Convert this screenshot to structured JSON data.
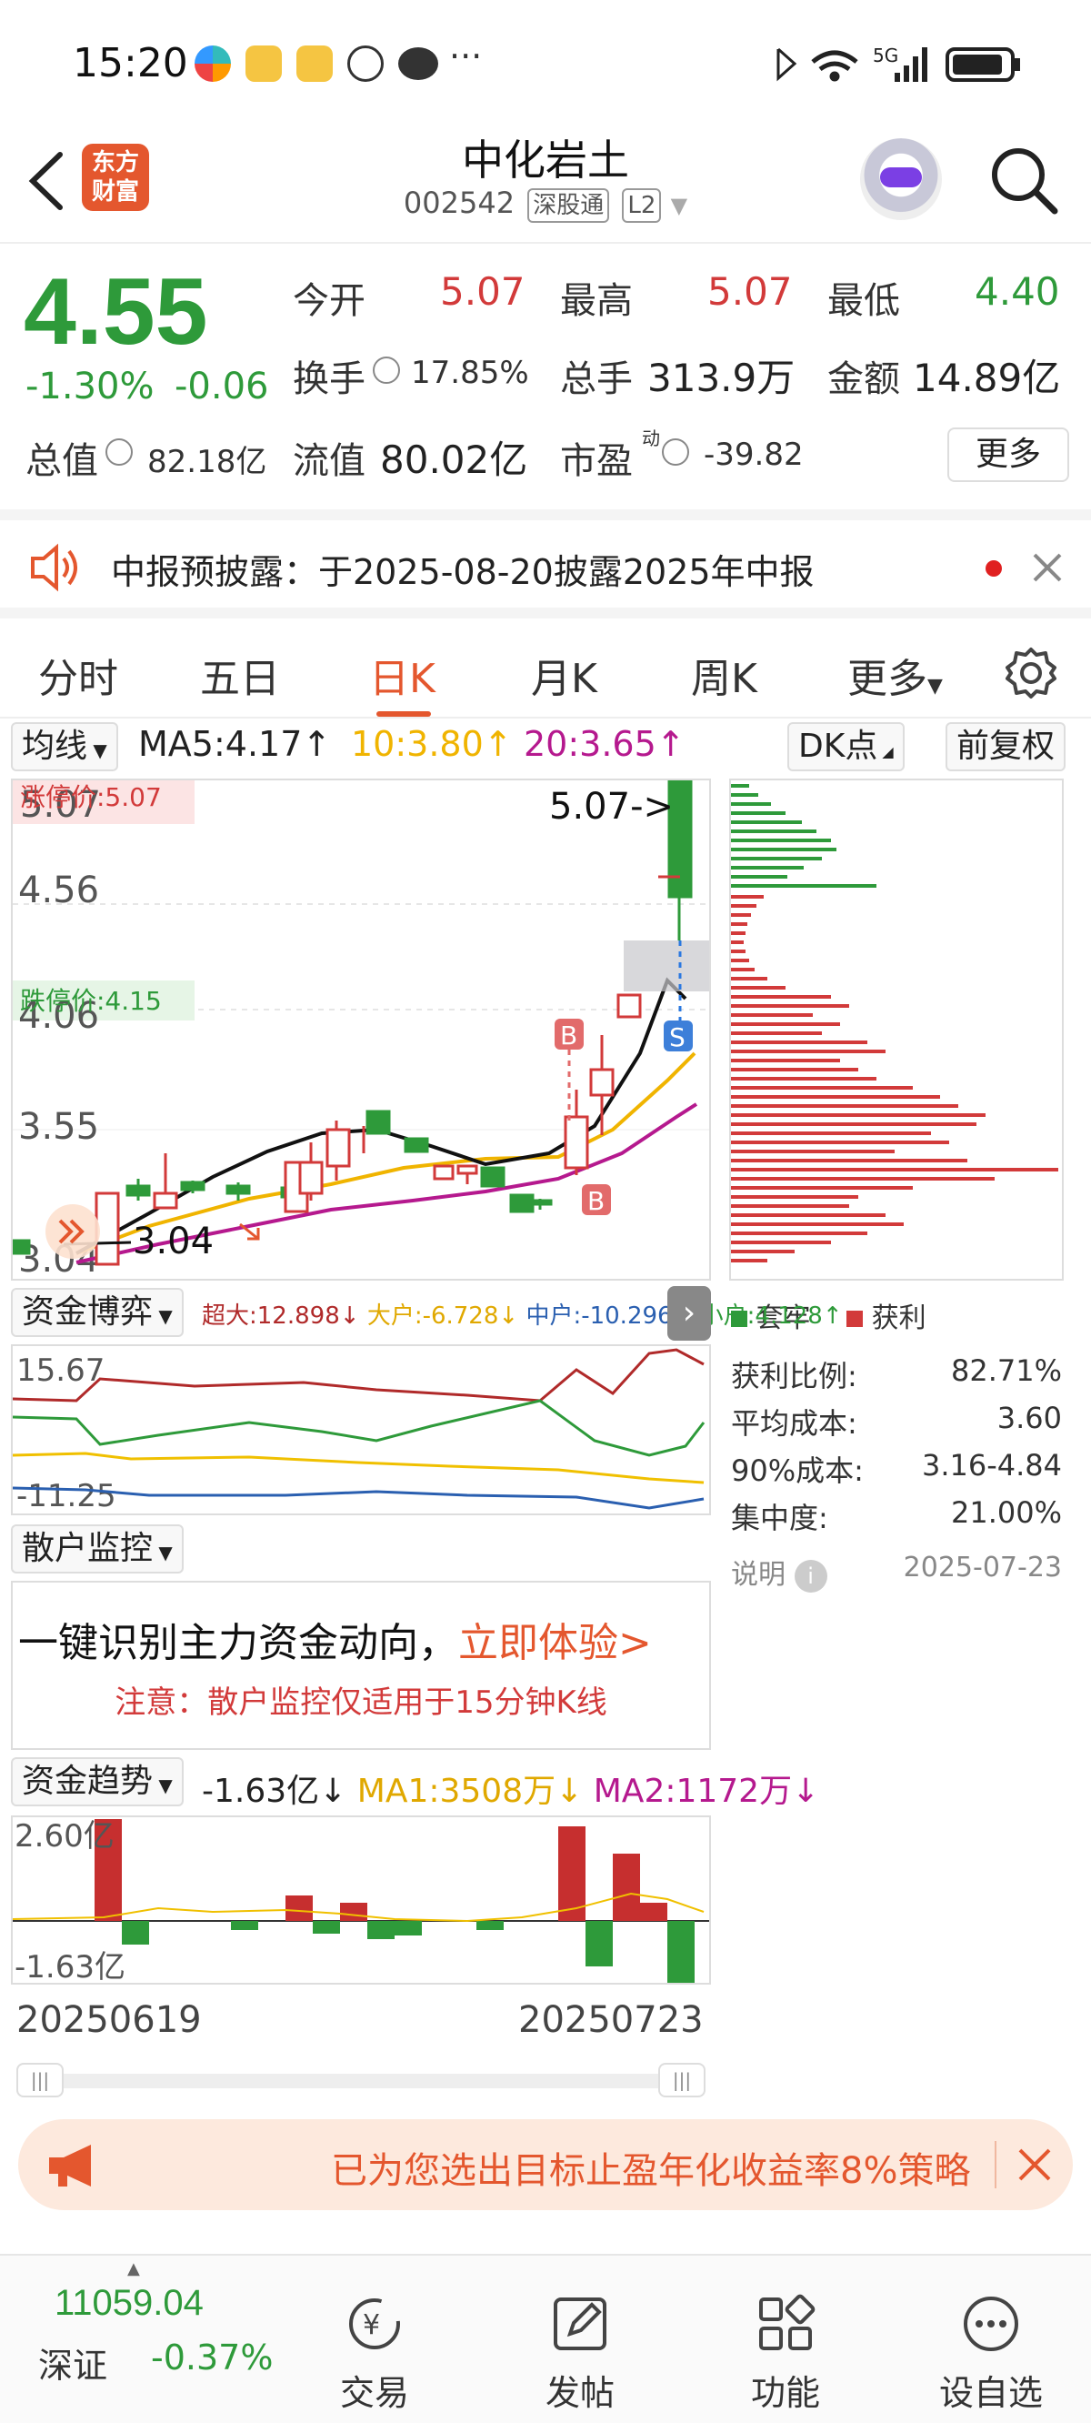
{
  "status": {
    "time": "15:20",
    "network": "5G"
  },
  "header": {
    "back_icon": "chevron-left-icon",
    "brand_line1": "东方",
    "brand_line2": "财富",
    "title": "中化岩土",
    "code": "002542",
    "tag1": "深股通",
    "tag2": "L2",
    "search_icon": "search-icon"
  },
  "quote": {
    "price": "4.55",
    "change_pct": "-1.30%",
    "change_abs": "-0.06",
    "open_label": "今开",
    "open": "5.07",
    "high_label": "最高",
    "high": "5.07",
    "low_label": "最低",
    "low": "4.40",
    "turnover_label": "换手",
    "turnover": "17.85%",
    "volume_label": "总手",
    "volume": "313.9万",
    "amount_label": "金额",
    "amount": "14.89亿",
    "mktcap_label": "总值",
    "mktcap": "82.18亿",
    "float_label": "流值",
    "float": "80.02亿",
    "pe_label": "市盈",
    "pe_sup": "动",
    "pe": "-39.82",
    "more": "更多"
  },
  "notice": {
    "text": "中报预披露：于2025-08-20披露2025年中报"
  },
  "tabs": [
    "分时",
    "五日",
    "日K",
    "月K",
    "周K",
    "更多"
  ],
  "kline": {
    "ma_dropdown": "均线",
    "ma5": "MA5:4.17",
    "ma10": "10:3.80",
    "ma20": "20:3.65",
    "dk_button": "DK点",
    "adj_button": "前复权",
    "limit_up": "涨停价:5.07",
    "limit_down": "跌停价:4.15",
    "y_top": "5.07",
    "y_456": "4.56",
    "y_406": "4.06",
    "y_355": "3.55",
    "y_bottom": "3.04",
    "high_annot": "5.07->",
    "low_annot": "3.04",
    "b_marker": "B",
    "s_marker": "S"
  },
  "fund": {
    "dropdown": "资金博弈",
    "super": "超大:12.898",
    "big": "大户:-6.728",
    "mid": "中户:-10.296",
    "small": "小户:4.128",
    "y_top": "15.67",
    "y_bottom": "-11.25"
  },
  "retail": {
    "dropdown": "散户监控",
    "headline": "一键识别主力资金动向，",
    "cta": "立即体验>",
    "note": "注意：散户监控仅适用于15分钟K线"
  },
  "trend": {
    "dropdown": "资金趋势",
    "value": "-1.63亿",
    "ma1": "MA1:3508万",
    "ma2": "MA2:1172万",
    "y_top": "2.60亿",
    "y_bottom": "-1.63亿"
  },
  "dates": {
    "start": "20250619",
    "end": "20250723"
  },
  "chip": {
    "legend_trap": "套牢",
    "legend_profit": "获利",
    "rows": [
      {
        "label": "获利比例:",
        "value": "82.71%"
      },
      {
        "label": "平均成本:",
        "value": "3.60"
      },
      {
        "label": "90%成本:",
        "value": "3.16-4.84"
      },
      {
        "label": "集中度:",
        "value": "21.00%"
      }
    ],
    "explain": "说明",
    "date": "2025-07-23"
  },
  "promo": {
    "text": "已为您选出目标止盈年化收益率8%策略"
  },
  "bottom": {
    "index_value": "11059.04",
    "index_name": "深证",
    "index_change": "-0.37%",
    "trade": "交易",
    "post": "发帖",
    "func": "功能",
    "watch": "设自选"
  }
}
